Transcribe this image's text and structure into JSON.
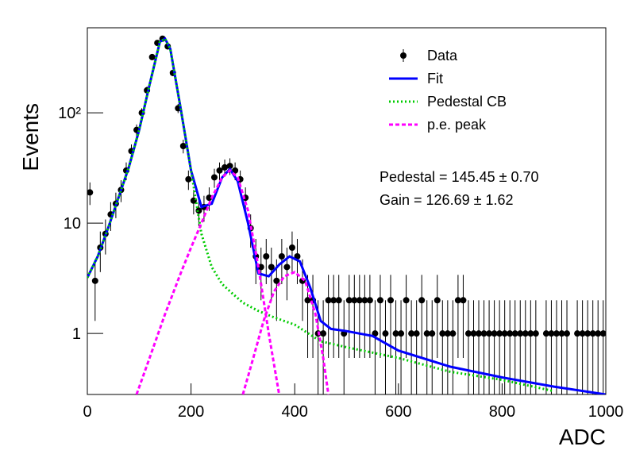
{
  "chart_data": {
    "type": "line",
    "xlabel": "ADC",
    "ylabel": "Events",
    "xlim": [
      0,
      1000
    ],
    "xticks": [
      0,
      200,
      400,
      600,
      800,
      1000
    ],
    "ylim": [
      0.28,
      590
    ],
    "yscale": "log",
    "yticks": [
      1,
      10,
      {
        "value": 100,
        "label": "10²"
      }
    ],
    "legend": "top-right",
    "annotations": [
      "Pedestal = 145.45 ± 0.70",
      "Gain = 126.69 ± 1.62"
    ],
    "series": [
      {
        "name": "Data",
        "color": "#000000",
        "marker": true,
        "x": [
          5,
          15,
          25,
          35,
          45,
          55,
          65,
          75,
          85,
          95,
          105,
          115,
          125,
          135,
          145,
          155,
          165,
          175,
          185,
          195,
          205,
          215,
          225,
          235,
          245,
          255,
          265,
          275,
          285,
          295,
          305,
          315,
          325,
          335,
          345,
          355,
          365,
          375,
          385,
          395,
          405,
          415,
          425,
          435,
          445,
          455,
          465,
          475,
          485,
          495,
          505,
          515,
          525,
          535,
          545,
          555,
          565,
          575,
          585,
          595,
          605,
          615,
          625,
          635,
          645,
          655,
          665,
          675,
          685,
          695,
          705,
          715,
          725,
          735,
          745,
          755,
          765,
          775,
          785,
          795,
          805,
          815,
          825,
          835,
          845,
          855,
          865,
          875,
          885,
          895,
          905,
          915,
          925,
          935,
          945,
          955,
          965,
          975,
          985,
          995
        ],
        "values": [
          19,
          3,
          6,
          8,
          12,
          15,
          20,
          30,
          45,
          70,
          100,
          160,
          320,
          430,
          470,
          400,
          230,
          110,
          50,
          25,
          16,
          13,
          14,
          17,
          26,
          30,
          32,
          33,
          30,
          25,
          17,
          9,
          5,
          4,
          5,
          4,
          3,
          5,
          4,
          6,
          5,
          3,
          2,
          2,
          1,
          1,
          2,
          2,
          2,
          1,
          2,
          2,
          2,
          2,
          2,
          1,
          2,
          1,
          2,
          1,
          1,
          2,
          1,
          1,
          2,
          1,
          1,
          2,
          1,
          1,
          1,
          2,
          2,
          1,
          1,
          1,
          1,
          1,
          1,
          1,
          1,
          1,
          1,
          1,
          1,
          1,
          1,
          null,
          1,
          1,
          1,
          1,
          1,
          null,
          1,
          1,
          1,
          1,
          1,
          1
        ],
        "errors": [
          4.4,
          1.7,
          2.4,
          2.8,
          3.5,
          3.9,
          4.5,
          5.5,
          6.7,
          8.4,
          10,
          12.6,
          17.9,
          20.7,
          21.7,
          20,
          15.2,
          10.5,
          7.1,
          5,
          4,
          3.6,
          3.7,
          4.1,
          5.1,
          5.5,
          5.7,
          5.7,
          5.5,
          5,
          4.1,
          3,
          2.2,
          2,
          2.2,
          2,
          1.7,
          2.2,
          2,
          2.4,
          2.2,
          1.7,
          1.4,
          1.4,
          1,
          1,
          1.4,
          1.4,
          1.4,
          1,
          1.4,
          1.4,
          1.4,
          1.4,
          1.4,
          1,
          1.4,
          1,
          1.4,
          1,
          1,
          1.4,
          1,
          1,
          1.4,
          1,
          1,
          1.4,
          1,
          1,
          1,
          1.4,
          1.4,
          1,
          1,
          1,
          1,
          1,
          1,
          1,
          1,
          1,
          1,
          1,
          1,
          1,
          1,
          null,
          1,
          1,
          1,
          1,
          1,
          null,
          1,
          1,
          1,
          1,
          1,
          1
        ]
      },
      {
        "name": "Fit",
        "color": "#0000ff",
        "line_style": "solid",
        "x": [
          0,
          20,
          40,
          60,
          80,
          100,
          120,
          140,
          150,
          160,
          180,
          200,
          220,
          240,
          260,
          275,
          290,
          310,
          330,
          350,
          370,
          390,
          410,
          430,
          450,
          470,
          500,
          550,
          600,
          700,
          800,
          900,
          1000
        ],
        "values": [
          3.2,
          5,
          9,
          17,
          32,
          70,
          180,
          440,
          470,
          380,
          110,
          30,
          14,
          15,
          26,
          31,
          24,
          10,
          3.5,
          3.3,
          4.2,
          5,
          4.5,
          2.6,
          1.3,
          1.1,
          1.05,
          0.95,
          0.7,
          0.5,
          0.4,
          0.33,
          0.28
        ]
      },
      {
        "name": "Pedestal CB",
        "color": "#00cc00",
        "line_style": "dotted",
        "x": [
          0,
          20,
          40,
          60,
          80,
          100,
          120,
          140,
          150,
          160,
          180,
          200,
          220,
          240,
          260,
          280,
          300,
          330,
          360,
          400,
          450,
          500,
          600,
          700,
          800,
          900
        ],
        "values": [
          3.2,
          5,
          9,
          17,
          32,
          70,
          180,
          440,
          470,
          380,
          110,
          30,
          8,
          4,
          2.8,
          2.3,
          1.9,
          1.6,
          1.4,
          1.2,
          0.85,
          0.75,
          0.6,
          0.45,
          0.38,
          0.3
        ]
      },
      {
        "name": "p.e. peak",
        "color": "#ff00ff",
        "line_style": "dashed",
        "x": [
          95,
          120,
          150,
          180,
          200,
          220,
          240,
          260,
          275,
          290,
          310,
          330,
          350,
          370,
          371,
          300,
          320,
          340,
          360,
          380,
          400,
          420,
          440,
          455,
          465
        ],
        "values": [
          0.28,
          0.6,
          1.5,
          3.5,
          6,
          10,
          17,
          26,
          30,
          26,
          13,
          4,
          1,
          0.28,
          null,
          0.28,
          0.6,
          1.3,
          2.4,
          3.3,
          3.6,
          3,
          1.5,
          0.6,
          0.28
        ]
      }
    ]
  }
}
